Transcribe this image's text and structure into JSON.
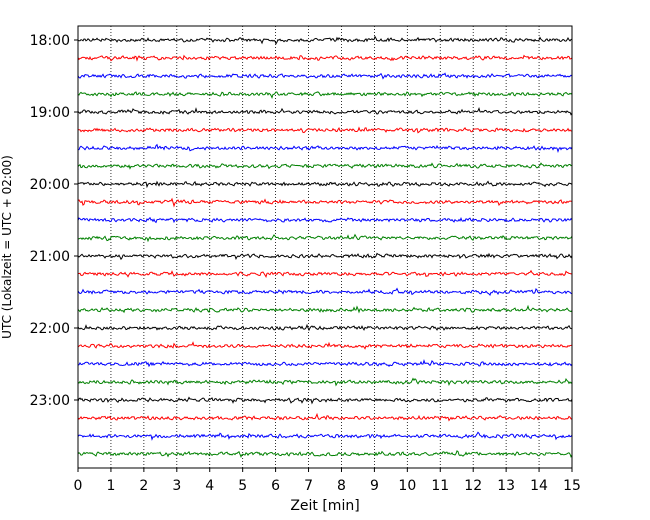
{
  "chart_data": {
    "type": "line",
    "title": "",
    "xlabel": "Zeit  [min]",
    "ylabel": "UTC (Lokalzeit = UTC + 02:00)",
    "xlim": [
      0,
      15
    ],
    "x_ticks": [
      0,
      1,
      2,
      3,
      4,
      5,
      6,
      7,
      8,
      9,
      10,
      11,
      12,
      13,
      14,
      15
    ],
    "y_ticks": [
      "18:00",
      "19:00",
      "20:00",
      "21:00",
      "22:00",
      "23:00"
    ],
    "grid": "vertical dotted",
    "trace_interval_minutes": 15,
    "trace_colors": [
      "#000000",
      "#ff0000",
      "#0000ff",
      "#008000"
    ],
    "traces": [
      "18:00",
      "18:15",
      "18:30",
      "18:45",
      "19:00",
      "19:15",
      "19:30",
      "19:45",
      "20:00",
      "20:15",
      "20:30",
      "20:45",
      "21:00",
      "21:15",
      "21:30",
      "21:45",
      "22:00",
      "22:15",
      "22:30",
      "22:45",
      "23:00",
      "23:15",
      "23:30",
      "23:45"
    ]
  }
}
